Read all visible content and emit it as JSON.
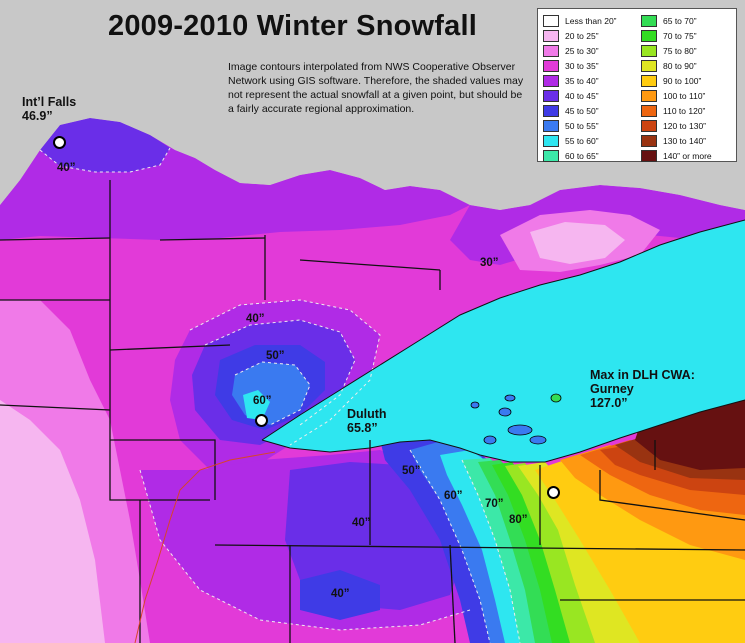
{
  "title": "2009-2010 Winter Snowfall",
  "note": "Image contours interpolated from NWS Cooperative Observer Network using GIS software. Therefore, the shaded values may not represent the actual snowfall at a given point, but should be a fairly accurate regional approximation.",
  "legend": [
    {
      "label": "Less than 20”",
      "color": "#ffffff"
    },
    {
      "label": "20 to 25”",
      "color": "#f6b6f0"
    },
    {
      "label": "25 to 30”",
      "color": "#f07ae8"
    },
    {
      "label": "30 to 35”",
      "color": "#e23ad8"
    },
    {
      "label": "35 to 40”",
      "color": "#b02be6"
    },
    {
      "label": "40 to 45”",
      "color": "#6a2ee8"
    },
    {
      "label": "45 to 50”",
      "color": "#3f3be6"
    },
    {
      "label": "50 to 55”",
      "color": "#3a7af0"
    },
    {
      "label": "55 to 60”",
      "color": "#2ee6f0"
    },
    {
      "label": "60 to 65”",
      "color": "#3ce8a8"
    },
    {
      "label": "65 to 70”",
      "color": "#33dd55"
    },
    {
      "label": "70 to 75”",
      "color": "#33dd22"
    },
    {
      "label": "75 to 80”",
      "color": "#99e622"
    },
    {
      "label": "80 to 90”",
      "color": "#dfe622"
    },
    {
      "label": "90 to 100”",
      "color": "#ffcc11"
    },
    {
      "label": "100 to 110”",
      "color": "#ff9911"
    },
    {
      "label": "110 to 120”",
      "color": "#ee6611"
    },
    {
      "label": "120 to 130”",
      "color": "#cc4411"
    },
    {
      "label": "130 to 140”",
      "color": "#993311"
    },
    {
      "label": "140” or more",
      "color": "#661111"
    }
  ],
  "places": {
    "intl_falls": {
      "name": "Int’l Falls",
      "value": "46.9”"
    },
    "duluth": {
      "name": "Duluth",
      "value": "65.8”"
    },
    "gurney_heading": "Max in DLH CWA:",
    "gurney": {
      "name": "Gurney",
      "value": "127.0”"
    }
  },
  "contours": {
    "c40_north": "40”",
    "c30": "30”",
    "c40_mid": "40”",
    "c50_mid": "50”",
    "c60_duluth": "60”",
    "c50_south": "50”",
    "c60_south": "60”",
    "c70": "70”",
    "c80": "80”",
    "c40_south": "40”",
    "c40_bottom": "40”"
  },
  "colors": {
    "land_gray": "#c8c8c8",
    "lake": "#2ee6f0"
  }
}
